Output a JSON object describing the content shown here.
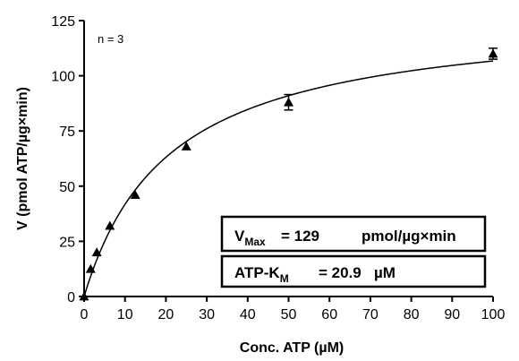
{
  "chart_data": {
    "type": "scatter",
    "title": "",
    "xlabel": "Conc. ATP (µM)",
    "ylabel": "V (pmol ATP/µg×min)",
    "xlim": [
      0,
      100
    ],
    "ylim": [
      0,
      125
    ],
    "x_ticks": [
      "0",
      "10",
      "20",
      "30",
      "40",
      "50",
      "60",
      "70",
      "80",
      "90",
      "100"
    ],
    "y_ticks": [
      "0",
      "25",
      "50",
      "75",
      "100",
      "125"
    ],
    "grid": false,
    "series": [
      {
        "marker": "triangle",
        "points": [
          {
            "x": 0,
            "y": 0
          },
          {
            "x": 1.6,
            "y": 12.5
          },
          {
            "x": 3.1,
            "y": 20
          },
          {
            "x": 6.3,
            "y": 32
          },
          {
            "x": 12.5,
            "y": 46
          },
          {
            "x": 25,
            "y": 68
          },
          {
            "x": 50,
            "y": 88,
            "err": 3.5
          },
          {
            "x": 100,
            "y": 110,
            "err": 2.5
          }
        ]
      }
    ],
    "fit": {
      "model": "michaelis-menten",
      "vmax": 129,
      "km": 20.9
    },
    "annotations": {
      "n": "n = 3",
      "vmax_label_main": "V",
      "vmax_label_sub": "Max",
      "vmax_value": "= 129",
      "vmax_unit": "pmol/µg×min",
      "km_label_main": "ATP-K",
      "km_label_sub": "M",
      "km_value": "= 20.9",
      "km_unit": "µM"
    }
  }
}
